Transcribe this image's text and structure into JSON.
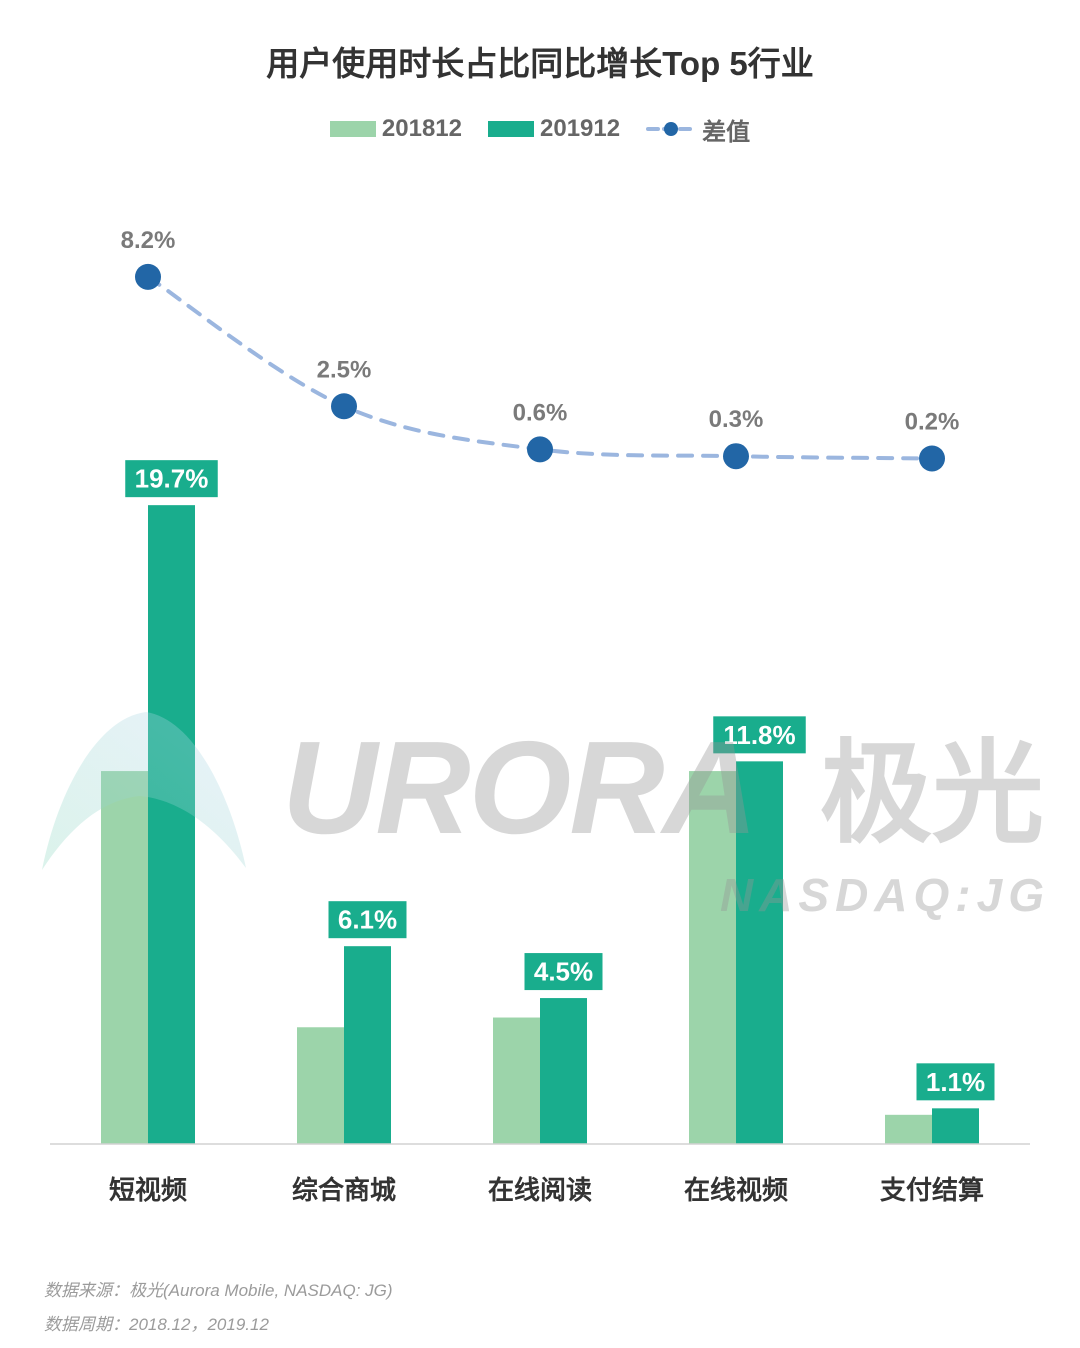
{
  "chart_data": {
    "type": "bar",
    "title": "用户使用时长占比同比增长Top 5行业",
    "xlabel": "",
    "ylabel": "",
    "categories": [
      "短视频",
      "综合商城",
      "在线阅读",
      "在线视频",
      "支付结算"
    ],
    "series": [
      {
        "name": "201812",
        "type": "bar",
        "values": [
          11.5,
          3.6,
          3.9,
          11.5,
          0.9
        ],
        "color": "#9cd4aa"
      },
      {
        "name": "201912",
        "type": "bar",
        "values": [
          19.7,
          6.1,
          4.5,
          11.8,
          1.1
        ],
        "labels": [
          "19.7%",
          "6.1%",
          "4.5%",
          "11.8%",
          "1.1%"
        ],
        "color": "#19ad8d"
      },
      {
        "name": "差值",
        "type": "line",
        "axis": "secondary",
        "line_style": "dashed",
        "values": [
          8.2,
          2.5,
          0.6,
          0.3,
          0.2
        ],
        "labels": [
          "8.2%",
          "2.5%",
          "0.6%",
          "0.3%",
          "0.2%"
        ],
        "color": "#2266a6",
        "line_color": "#9bb6df"
      }
    ],
    "ylim": [
      0,
      28
    ],
    "y2lim": [
      -30,
      10
    ],
    "grid": false,
    "legend_position": "top-center"
  },
  "watermark": {
    "brand": "URORA",
    "brand_cn": "极光",
    "ticker": "NASDAQ:JG"
  },
  "footer": {
    "source": "数据来源：极光(Aurora Mobile, NASDAQ: JG)",
    "period": "数据周期：2018.12，2019.12"
  }
}
